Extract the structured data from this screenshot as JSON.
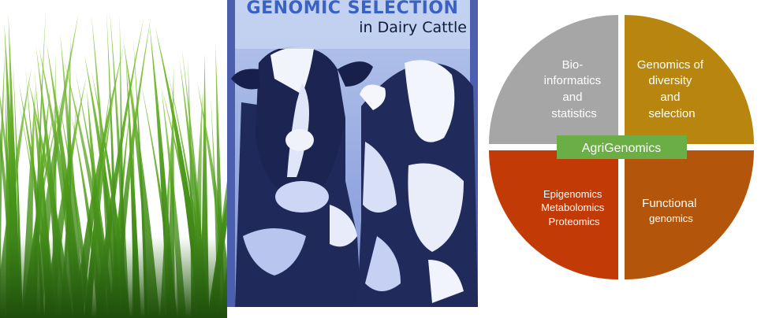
{
  "cover": {
    "title": "GENOMIC SELECTION",
    "subtitle": "in Dairy Cattle"
  },
  "diagram": {
    "center_label": "AgriGenomics",
    "colors": {
      "top_left": "#a6a6a6",
      "top_right": "#b8860e",
      "bottom_left": "#c23a05",
      "bottom_right": "#b3560c",
      "center_box": "#6aae45"
    },
    "quadrants": {
      "top_left": [
        "Bio-",
        "informatics",
        "and",
        "statistics"
      ],
      "top_right": [
        "Genomics of",
        "diversity",
        "and",
        "selection"
      ],
      "bottom_left": [
        "Epigenomics",
        "Metabolomics",
        "Proteomics"
      ],
      "bottom_right": [
        "Functional",
        "genomics"
      ]
    }
  }
}
